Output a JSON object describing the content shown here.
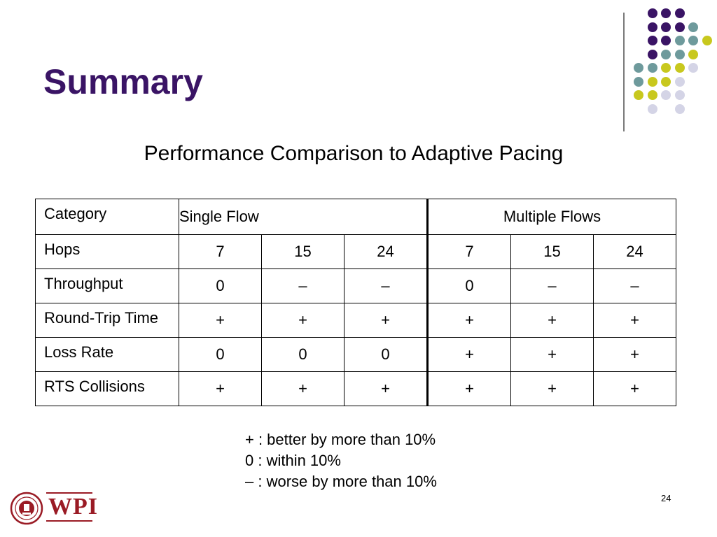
{
  "slide": {
    "title": "Summary",
    "subtitle": "Performance Comparison to Adaptive Pacing",
    "page_number": "24"
  },
  "table": {
    "header": {
      "category": "Category",
      "single_flow": "Single Flow",
      "multiple_flows": "Multiple Flows"
    },
    "rows": [
      {
        "label": "Hops",
        "cells": [
          "7",
          "15",
          "24",
          "7",
          "15",
          "24"
        ]
      },
      {
        "label": "Throughput",
        "cells": [
          "0",
          "–",
          "–",
          "0",
          "–",
          "–"
        ]
      },
      {
        "label": "Round-Trip Time",
        "cells": [
          "+",
          "+",
          "+",
          "+",
          "+",
          "+"
        ]
      },
      {
        "label": "Loss Rate",
        "cells": [
          "0",
          "0",
          "0",
          "+",
          "+",
          "+"
        ]
      },
      {
        "label": "RTS Collisions",
        "cells": [
          "+",
          "+",
          "+",
          "+",
          "+",
          "+"
        ]
      }
    ]
  },
  "legend": [
    "+ : better by more than 10%",
    "0 : within 10%",
    "– : worse by more than 10%"
  ],
  "logo": {
    "text": "WPI"
  },
  "colors": {
    "title": "#3a1465",
    "purple": "#3a1465",
    "teal": "#6e9a9c",
    "yellow": "#c8c81e",
    "lavender": "#d4d4e6",
    "logo_red": "#9a1b25"
  },
  "decoration_dot_grid": [
    [
      "",
      "purple",
      "purple",
      "purple",
      ""
    ],
    [
      "",
      "purple",
      "purple",
      "purple",
      "teal"
    ],
    [
      "",
      "purple",
      "purple",
      "teal",
      "teal",
      "yellow"
    ],
    [
      "",
      "purple",
      "teal",
      "teal",
      "yellow"
    ],
    [
      "teal",
      "teal",
      "yellow",
      "yellow",
      "lavender"
    ],
    [
      "teal",
      "yellow",
      "yellow",
      "lavender"
    ],
    [
      "yellow",
      "yellow",
      "lavender",
      "lavender"
    ],
    [
      "",
      "lavender",
      "",
      "lavender"
    ]
  ]
}
